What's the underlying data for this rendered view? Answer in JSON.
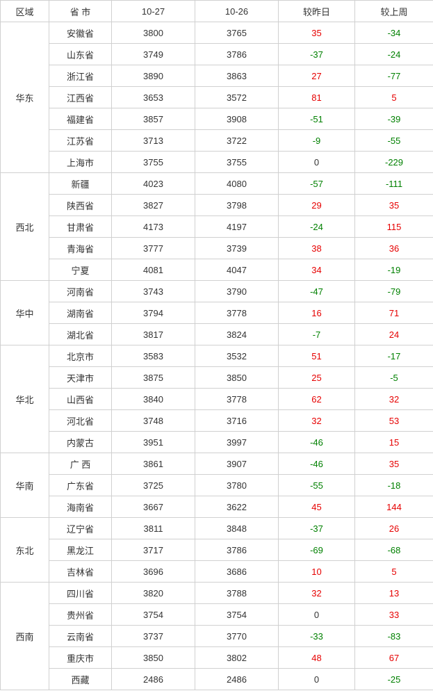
{
  "headers": {
    "region": "区域",
    "province": "省 市",
    "date1": "10-27",
    "date2": "10-26",
    "diff_day": "较昨日",
    "diff_week": "较上周"
  },
  "colors": {
    "positive": "#e60000",
    "negative": "#008000",
    "zero": "#333333",
    "border": "#d0d0d0",
    "text": "#333333",
    "background": "#ffffff"
  },
  "regions": [
    {
      "name": "华东",
      "rows": [
        {
          "prov": "安徽省",
          "d1": "3800",
          "d2": "3765",
          "vd": "35",
          "vw": "-34"
        },
        {
          "prov": "山东省",
          "d1": "3749",
          "d2": "3786",
          "vd": "-37",
          "vw": "-24"
        },
        {
          "prov": "浙江省",
          "d1": "3890",
          "d2": "3863",
          "vd": "27",
          "vw": "-77"
        },
        {
          "prov": "江西省",
          "d1": "3653",
          "d2": "3572",
          "vd": "81",
          "vw": "5"
        },
        {
          "prov": "福建省",
          "d1": "3857",
          "d2": "3908",
          "vd": "-51",
          "vw": "-39"
        },
        {
          "prov": "江苏省",
          "d1": "3713",
          "d2": "3722",
          "vd": "-9",
          "vw": "-55"
        },
        {
          "prov": "上海市",
          "d1": "3755",
          "d2": "3755",
          "vd": "0",
          "vw": "-229"
        }
      ]
    },
    {
      "name": "西北",
      "rows": [
        {
          "prov": "新疆",
          "d1": "4023",
          "d2": "4080",
          "vd": "-57",
          "vw": "-111"
        },
        {
          "prov": "陕西省",
          "d1": "3827",
          "d2": "3798",
          "vd": "29",
          "vw": "35"
        },
        {
          "prov": "甘肃省",
          "d1": "4173",
          "d2": "4197",
          "vd": "-24",
          "vw": "115"
        },
        {
          "prov": "青海省",
          "d1": "3777",
          "d2": "3739",
          "vd": "38",
          "vw": "36"
        },
        {
          "prov": "宁夏",
          "d1": "4081",
          "d2": "4047",
          "vd": "34",
          "vw": "-19"
        }
      ]
    },
    {
      "name": "华中",
      "rows": [
        {
          "prov": "河南省",
          "d1": "3743",
          "d2": "3790",
          "vd": "-47",
          "vw": "-79"
        },
        {
          "prov": "湖南省",
          "d1": "3794",
          "d2": "3778",
          "vd": "16",
          "vw": "71"
        },
        {
          "prov": "湖北省",
          "d1": "3817",
          "d2": "3824",
          "vd": "-7",
          "vw": "24"
        }
      ]
    },
    {
      "name": "华北",
      "rows": [
        {
          "prov": "北京市",
          "d1": "3583",
          "d2": "3532",
          "vd": "51",
          "vw": "-17"
        },
        {
          "prov": "天津市",
          "d1": "3875",
          "d2": "3850",
          "vd": "25",
          "vw": "-5"
        },
        {
          "prov": "山西省",
          "d1": "3840",
          "d2": "3778",
          "vd": "62",
          "vw": "32"
        },
        {
          "prov": "河北省",
          "d1": "3748",
          "d2": "3716",
          "vd": "32",
          "vw": "53"
        },
        {
          "prov": "内蒙古",
          "d1": "3951",
          "d2": "3997",
          "vd": "-46",
          "vw": "15"
        }
      ]
    },
    {
      "name": "华南",
      "rows": [
        {
          "prov": "广 西",
          "d1": "3861",
          "d2": "3907",
          "vd": "-46",
          "vw": "35"
        },
        {
          "prov": "广东省",
          "d1": "3725",
          "d2": "3780",
          "vd": "-55",
          "vw": "-18"
        },
        {
          "prov": "海南省",
          "d1": "3667",
          "d2": "3622",
          "vd": "45",
          "vw": "144"
        }
      ]
    },
    {
      "name": "东北",
      "rows": [
        {
          "prov": "辽宁省",
          "d1": "3811",
          "d2": "3848",
          "vd": "-37",
          "vw": "26"
        },
        {
          "prov": "黑龙江",
          "d1": "3717",
          "d2": "3786",
          "vd": "-69",
          "vw": "-68"
        },
        {
          "prov": "吉林省",
          "d1": "3696",
          "d2": "3686",
          "vd": "10",
          "vw": "5"
        }
      ]
    },
    {
      "name": "西南",
      "rows": [
        {
          "prov": "四川省",
          "d1": "3820",
          "d2": "3788",
          "vd": "32",
          "vw": "13"
        },
        {
          "prov": "贵州省",
          "d1": "3754",
          "d2": "3754",
          "vd": "0",
          "vw": "33"
        },
        {
          "prov": "云南省",
          "d1": "3737",
          "d2": "3770",
          "vd": "-33",
          "vw": "-83"
        },
        {
          "prov": "重庆市",
          "d1": "3850",
          "d2": "3802",
          "vd": "48",
          "vw": "67"
        },
        {
          "prov": "西藏",
          "d1": "2486",
          "d2": "2486",
          "vd": "0",
          "vw": "-25"
        }
      ]
    }
  ]
}
